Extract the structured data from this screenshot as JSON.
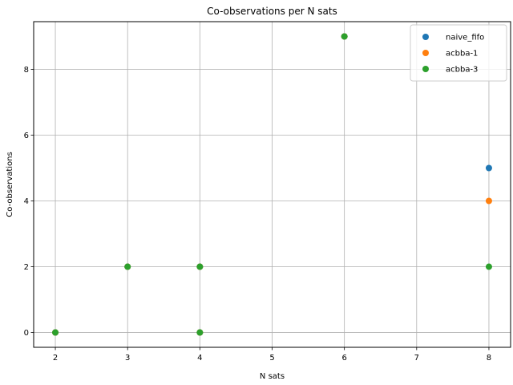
{
  "chart_data": {
    "type": "scatter",
    "title": "Co-observations per N sats",
    "xlabel": "N sats",
    "ylabel": "Co-observations",
    "xlim": [
      1.7,
      8.3
    ],
    "ylim": [
      -0.45,
      9.45
    ],
    "xticks": [
      2,
      3,
      4,
      5,
      6,
      7,
      8
    ],
    "yticks": [
      0,
      2,
      4,
      6,
      8
    ],
    "grid": true,
    "legend_position": "top-right",
    "series": [
      {
        "name": "naive_fifo",
        "color": "#1f77b4",
        "points": [
          [
            2,
            0
          ],
          [
            3,
            2
          ],
          [
            4,
            2
          ],
          [
            4,
            0
          ],
          [
            6,
            9
          ],
          [
            8,
            5
          ]
        ]
      },
      {
        "name": "acbba-1",
        "color": "#ff7f0e",
        "points": [
          [
            2,
            0
          ],
          [
            3,
            2
          ],
          [
            4,
            2
          ],
          [
            4,
            0
          ],
          [
            6,
            9
          ],
          [
            8,
            4
          ]
        ]
      },
      {
        "name": "acbba-3",
        "color": "#2ca02c",
        "points": [
          [
            2,
            0
          ],
          [
            3,
            2
          ],
          [
            4,
            2
          ],
          [
            4,
            0
          ],
          [
            6,
            9
          ],
          [
            8,
            2
          ]
        ]
      }
    ]
  }
}
